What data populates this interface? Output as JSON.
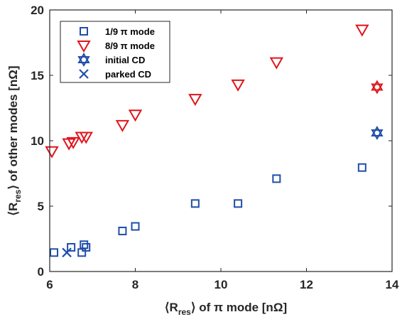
{
  "chart_data": {
    "type": "scatter",
    "xlabel": "⟨R_res⟩ of π mode [nΩ]",
    "ylabel": "⟨R_res⟩ of other modes [nΩ]",
    "xlim": [
      6,
      14
    ],
    "ylim": [
      0,
      20
    ],
    "xticks": [
      6,
      8,
      10,
      12,
      14
    ],
    "yticks": [
      0,
      5,
      10,
      15,
      20
    ],
    "grid": false,
    "legend_position": "top-left",
    "series": [
      {
        "name": "1/9 π mode",
        "marker": "square",
        "color": "#1f4ea8",
        "points": [
          [
            6.1,
            1.45
          ],
          [
            6.5,
            1.85
          ],
          [
            6.75,
            1.45
          ],
          [
            6.8,
            2.05
          ],
          [
            6.85,
            1.85
          ],
          [
            7.7,
            3.1
          ],
          [
            8.0,
            3.45
          ],
          [
            9.4,
            5.2
          ],
          [
            10.4,
            5.2
          ],
          [
            11.3,
            7.1
          ],
          [
            13.3,
            7.95
          ]
        ]
      },
      {
        "name": "8/9 π mode",
        "marker": "triangle-down",
        "color": "#e0151b",
        "points": [
          [
            6.05,
            9.2
          ],
          [
            6.45,
            9.8
          ],
          [
            6.55,
            9.9
          ],
          [
            6.75,
            10.3
          ],
          [
            6.85,
            10.3
          ],
          [
            7.7,
            11.2
          ],
          [
            8.0,
            12.0
          ],
          [
            9.4,
            13.2
          ],
          [
            10.4,
            14.3
          ],
          [
            11.3,
            16.0
          ],
          [
            13.3,
            18.5
          ]
        ]
      },
      {
        "name": "initial CD",
        "marker": "hexagram",
        "color": "#1f4ea8",
        "points": [
          [
            13.65,
            10.6
          ]
        ]
      },
      {
        "name": "parked CD",
        "marker": "x",
        "color": "#1f4ea8",
        "points": [
          [
            6.4,
            1.45
          ]
        ]
      },
      {
        "name": "",
        "marker": "hexagram",
        "color": "#e0151b",
        "points": [
          [
            13.65,
            14.1
          ]
        ]
      }
    ]
  }
}
